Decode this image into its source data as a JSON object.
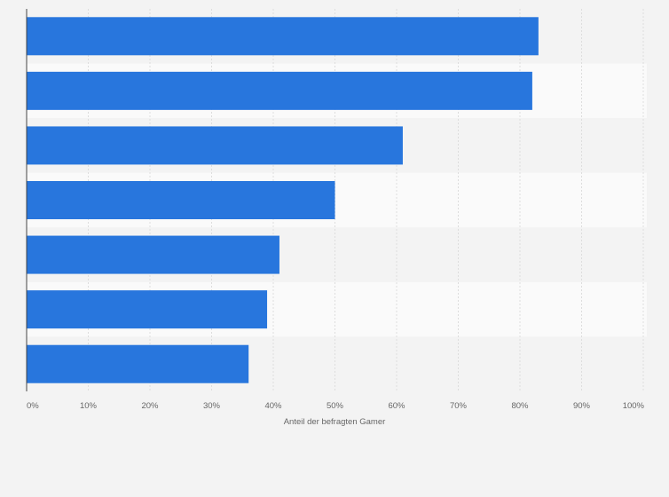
{
  "chart_data": {
    "type": "bar",
    "orientation": "horizontal",
    "categories": [
      "",
      "",
      "",
      "",
      "",
      "",
      ""
    ],
    "values": [
      83,
      82,
      61,
      50,
      41,
      39,
      36
    ],
    "xlabel": "Anteil der befragten Gamer",
    "ylabel": "",
    "xlim": [
      0,
      100
    ],
    "ticks": [
      0,
      10,
      20,
      30,
      40,
      50,
      60,
      70,
      80,
      90,
      100
    ],
    "tick_suffix": "%",
    "grid": true,
    "bar_color": "#2876dd",
    "band_colors": [
      "#f3f3f3",
      "#fafafa"
    ],
    "gridline_color": "#dddddd",
    "axis_color": "#444444"
  }
}
